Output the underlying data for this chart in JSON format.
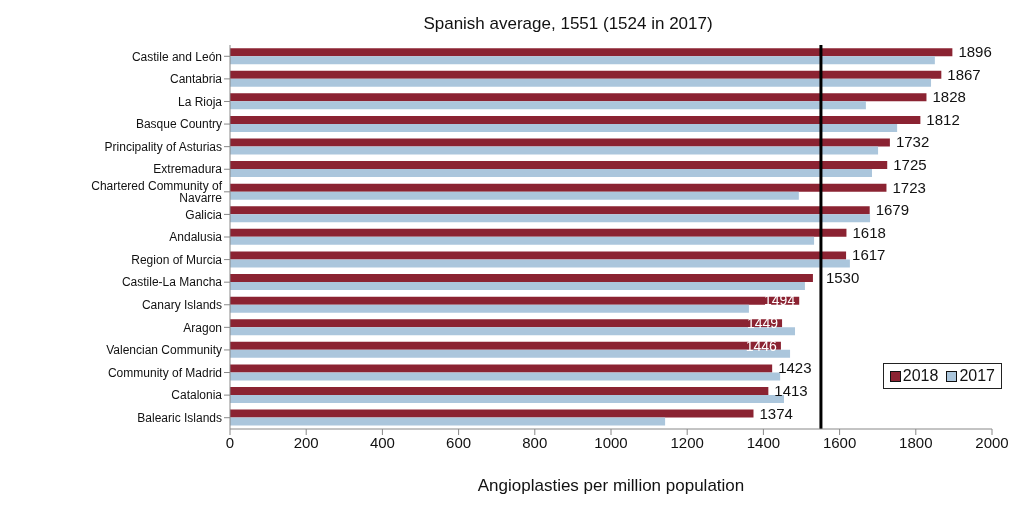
{
  "chart_data": {
    "type": "bar",
    "orientation": "horizontal",
    "title": "Spanish average, 1551 (1524 in 2017)",
    "xlabel": "Angioplasties per million population",
    "categories": [
      "Castile and León",
      "Cantabria",
      "La Rioja",
      "Basque Country",
      "Principality of Asturias",
      "Extremadura",
      "Chartered Community of Navarre",
      "Galicia",
      "Andalusia",
      "Region of Murcia",
      "Castile-La Mancha",
      "Canary Islands",
      "Aragon",
      "Valencian Community",
      "Community of Madrid",
      "Catalonia",
      "Balearic Islands"
    ],
    "series": [
      {
        "name": "2018",
        "color": "#8b2332",
        "values": [
          1896,
          1867,
          1828,
          1812,
          1732,
          1725,
          1723,
          1679,
          1618,
          1617,
          1530,
          1494,
          1449,
          1446,
          1423,
          1413,
          1374
        ],
        "value_labels": [
          "1896",
          "1867",
          "1828",
          "1812",
          "1732",
          "1725",
          "1723",
          "1679",
          "1618",
          "1617",
          "1530",
          "1494",
          "1449",
          "1446",
          "1423",
          "1413",
          "1374"
        ]
      },
      {
        "name": "2017",
        "color": "#abc6dc",
        "values": [
          1850,
          1840,
          1669,
          1751,
          1701,
          1685,
          1493,
          1680,
          1533,
          1627,
          1509,
          1362,
          1483,
          1470,
          1444,
          1454,
          1142
        ]
      }
    ],
    "xlim": [
      0,
      2000
    ],
    "xticks": [
      0,
      200,
      400,
      600,
      800,
      1000,
      1200,
      1400,
      1600,
      1800,
      2000
    ],
    "ref_lines": [
      {
        "axis": "x",
        "value": 1551,
        "color": "#000000"
      }
    ],
    "grid": false,
    "legend": "right"
  }
}
